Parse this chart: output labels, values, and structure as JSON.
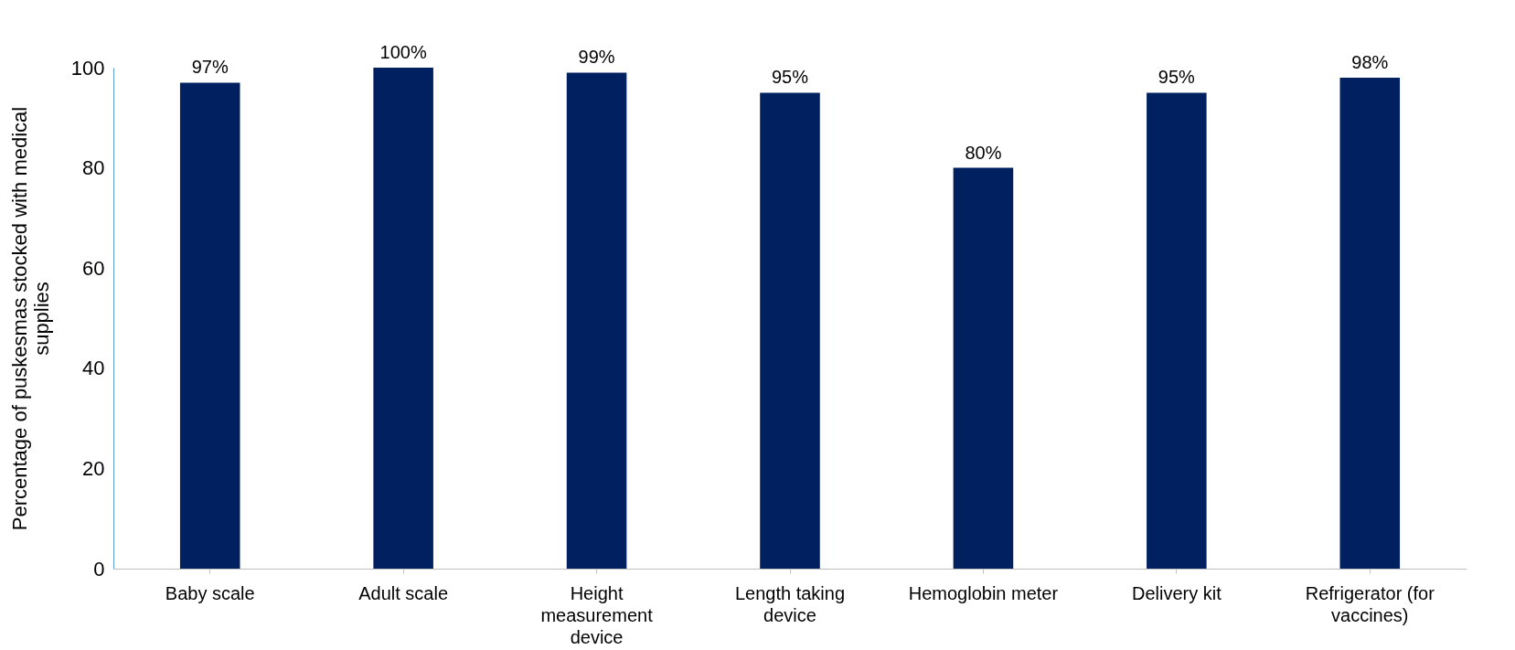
{
  "chart_data": {
    "type": "bar",
    "ylabel": "Percentage of puskesmas stocked with medical supplies",
    "categories": [
      "Baby scale",
      "Adult scale",
      "Height measurement device",
      "Length taking device",
      "Hemoglobin meter",
      "Delivery kit",
      "Refrigerator (for vaccines)"
    ],
    "values": [
      97,
      100,
      99,
      95,
      80,
      95,
      98
    ],
    "value_labels": [
      "97%",
      "100%",
      "99%",
      "95%",
      "80%",
      "95%",
      "98%"
    ],
    "color": "#002060",
    "ylim": [
      0,
      100
    ],
    "yticks": [
      0,
      20,
      40,
      60,
      80,
      100
    ],
    "grid": false
  }
}
